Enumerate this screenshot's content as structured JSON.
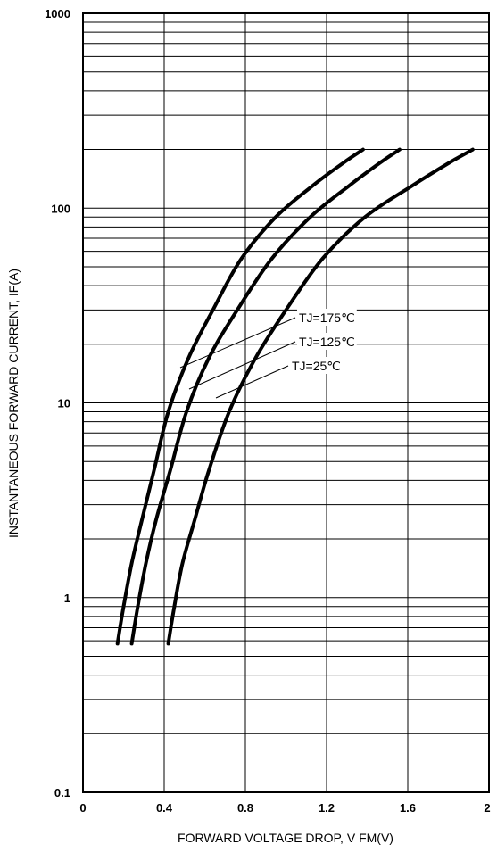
{
  "chart_data": {
    "type": "line",
    "title": "",
    "xlabel": "FORWARD VOLTAGE DROP, V FM(V)",
    "ylabel": "INSTANTANEOUS FORWARD CURRENT, IF(A)",
    "x_scale": "linear",
    "y_scale": "log",
    "xlim": [
      0,
      2
    ],
    "ylim": [
      0.1,
      1000
    ],
    "x_ticks": [
      "0",
      "0.4",
      "0.8",
      "1.2",
      "1.6",
      "2"
    ],
    "y_ticks": [
      "0.1",
      "1",
      "10",
      "100",
      "1000"
    ],
    "grid": true,
    "series": [
      {
        "name": "TJ=175℃",
        "x": [
          0.17,
          0.2,
          0.24,
          0.29,
          0.35,
          0.42,
          0.52,
          0.64,
          0.78,
          0.95,
          1.13,
          1.28,
          1.38
        ],
        "y": [
          0.58,
          0.9,
          1.5,
          2.5,
          4.5,
          9,
          17,
          30,
          55,
          90,
          130,
          170,
          200
        ]
      },
      {
        "name": "TJ=125℃",
        "x": [
          0.24,
          0.27,
          0.31,
          0.36,
          0.43,
          0.51,
          0.62,
          0.76,
          0.93,
          1.12,
          1.31,
          1.46,
          1.56
        ],
        "y": [
          0.58,
          0.9,
          1.5,
          2.5,
          4.5,
          9,
          17,
          30,
          55,
          90,
          130,
          170,
          200
        ]
      },
      {
        "name": "TJ=25℃",
        "x": [
          0.42,
          0.45,
          0.49,
          0.55,
          0.62,
          0.72,
          0.85,
          1.0,
          1.18,
          1.39,
          1.62,
          1.8,
          1.92
        ],
        "y": [
          0.58,
          0.9,
          1.5,
          2.5,
          4.5,
          9,
          17,
          30,
          55,
          90,
          130,
          170,
          200
        ]
      }
    ]
  }
}
